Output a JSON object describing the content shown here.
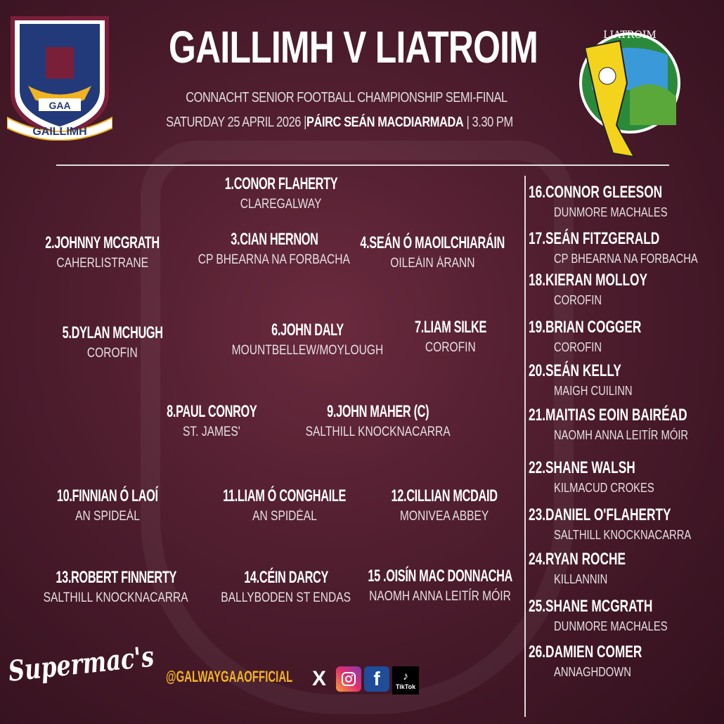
{
  "header": {
    "title": "GAILLIMH V LIATROIM",
    "competition": "CONNACHT SENIOR FOOTBALL CHAMPIONSHIP SEMI-FINAL",
    "date": "SATURDAY 25 APRIL 2026",
    "venue": "PÁIRC SEÁN MACDIARMADA",
    "time": "3.30  PM",
    "separator": "|"
  },
  "logos": {
    "home_crest_text": "GAILLIMH",
    "home_crest_gaa": "GAA",
    "away_crest_text": "LIATROIM",
    "sponsor": "Supermac's"
  },
  "colors": {
    "background": "#4e1d2e",
    "handle": "#f0b323",
    "facebook": "#1f4d99",
    "text": "#ffffff"
  },
  "starters": [
    {
      "number": "1.",
      "name": "CONOR FLAHERTY",
      "club": "CLAREGALWAY"
    },
    {
      "number": "2.",
      "name": "JOHNNY MCGRATH",
      "club": "CAHERLISTRANE"
    },
    {
      "number": "3.",
      "name": "CIAN HERNON",
      "club": "CP BHEARNA NA FORBACHA"
    },
    {
      "number": "4.",
      "name": "SEÁN Ó MAOILCHIARÁIN",
      "club": "OILEÁIN ÁRANN"
    },
    {
      "number": "5.",
      "name": "DYLAN MCHUGH",
      "club": "COROFIN"
    },
    {
      "number": "6.",
      "name": "JOHN DALY",
      "club": "MOUNTBELLEW/MOYLOUGH"
    },
    {
      "number": "7.",
      "name": "LIAM SILKE",
      "club": "COROFIN"
    },
    {
      "number": "8.",
      "name": "PAUL CONROY",
      "club": "ST. JAMES'"
    },
    {
      "number": "9.",
      "name": "JOHN MAHER (C)",
      "club": "SALTHILL KNOCKNACARRA"
    },
    {
      "number": "10.",
      "name": "FINNIAN  Ó LAOÍ",
      "club": "AN SPIDEÁL"
    },
    {
      "number": "11.",
      "name": "LIAM Ó CONGHAILE",
      "club": "AN SPIDÉAL"
    },
    {
      "number": "12.",
      "name": "CILLIAN MCDAID",
      "club": "MONIVEA ABBEY"
    },
    {
      "number": "13.",
      "name": "ROBERT FINNERTY",
      "club": "SALTHILL KNOCKNACARRA"
    },
    {
      "number": "14.",
      "name": "CÉIN DARCY",
      "club": "BALLYBODEN ST ENDAS"
    },
    {
      "number": "15 .",
      "name": "OISÍN MAC DONNACHA",
      "club": "NAOMH ANNA LEITÍR MÓIR"
    }
  ],
  "subs": [
    {
      "number": "16.",
      "name": "CONNOR GLEESON",
      "club": "DUNMORE MACHALES"
    },
    {
      "number": "17.",
      "name": "SEÁN FITZGERALD",
      "club": "CP BHEARNA NA FORBACHA"
    },
    {
      "number": "18.",
      "name": "KIERAN MOLLOY",
      "club": "COROFIN"
    },
    {
      "number": "19.",
      "name": "BRIAN COGGER",
      "club": "COROFIN"
    },
    {
      "number": "20.",
      "name": "SEÁN KELLY",
      "club": "MAIGH CUILINN"
    },
    {
      "number": "21.",
      "name": "MAITIAS EOIN BAIRÉAD",
      "club": "NAOMH ANNA LEITÍR MÓIR"
    },
    {
      "number": "22.",
      "name": "SHANE WALSH",
      "club": "KILMACUD CROKES"
    },
    {
      "number": "23.",
      "name": "DANIEL O'FLAHERTY",
      "club": "SALTHILL KNOCKNACARRA"
    },
    {
      "number": "24.",
      "name": "RYAN ROCHE",
      "club": "KILLANNIN"
    },
    {
      "number": "25.",
      "name": "SHANE MCGRATH",
      "club": "DUNMORE MACHALES"
    },
    {
      "number": "26.",
      "name": "DAMIEN COMER",
      "club": "ANNAGHDOWN"
    }
  ],
  "footer": {
    "handle": "@GALWAYGAAOFFICIAL",
    "social": [
      {
        "icon": "x-icon",
        "label": "X"
      },
      {
        "icon": "instagram-icon",
        "label": ""
      },
      {
        "icon": "facebook-icon",
        "label": "f"
      },
      {
        "icon": "tiktok-icon",
        "label": "TikTok"
      }
    ]
  }
}
